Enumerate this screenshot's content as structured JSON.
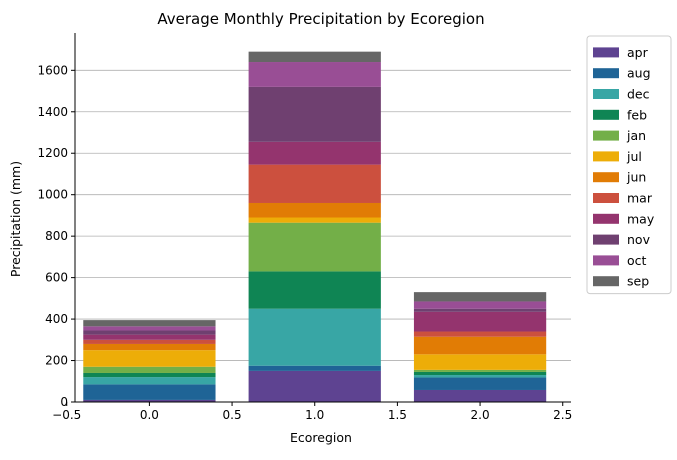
{
  "chart_data": {
    "type": "bar",
    "stacked": true,
    "title": "Average Monthly Precipitation by Ecoregion",
    "xlabel": "Ecoregion",
    "ylabel": "Precipitation (mm)",
    "x": [
      0,
      1,
      2
    ],
    "xlim": [
      -0.45,
      2.55
    ],
    "ylim": [
      0,
      1780
    ],
    "xticks": [
      -0.5,
      0.0,
      0.5,
      1.0,
      1.5,
      2.0,
      2.5
    ],
    "xtick_labels": [
      "−0.5",
      "0.0",
      "0.5",
      "1.0",
      "1.5",
      "2.0",
      "2.5"
    ],
    "yticks": [
      0,
      200,
      400,
      600,
      800,
      1000,
      1200,
      1400,
      1600
    ],
    "grid": "horizontal",
    "legend_position": "outside-right",
    "series": [
      {
        "name": "apr",
        "color": "#5e4391",
        "values": [
          10,
          150,
          58
        ]
      },
      {
        "name": "aug",
        "color": "#1f6496",
        "values": [
          75,
          25,
          60
        ]
      },
      {
        "name": "dec",
        "color": "#38a6a5",
        "values": [
          35,
          275,
          12
        ]
      },
      {
        "name": "feb",
        "color": "#0f8554",
        "values": [
          20,
          180,
          15
        ]
      },
      {
        "name": "jan",
        "color": "#73af48",
        "values": [
          30,
          235,
          10
        ]
      },
      {
        "name": "jul",
        "color": "#edad08",
        "values": [
          80,
          25,
          75
        ]
      },
      {
        "name": "jun",
        "color": "#e17c05",
        "values": [
          30,
          70,
          85
        ]
      },
      {
        "name": "mar",
        "color": "#cc503e",
        "values": [
          20,
          185,
          25
        ]
      },
      {
        "name": "may",
        "color": "#94346e",
        "values": [
          25,
          110,
          95
        ]
      },
      {
        "name": "nov",
        "color": "#6f4070",
        "values": [
          20,
          265,
          15
        ]
      },
      {
        "name": "oct",
        "color": "#994e95",
        "values": [
          20,
          120,
          35
        ]
      },
      {
        "name": "sep",
        "color": "#666666",
        "values": [
          30,
          50,
          45
        ]
      }
    ]
  }
}
